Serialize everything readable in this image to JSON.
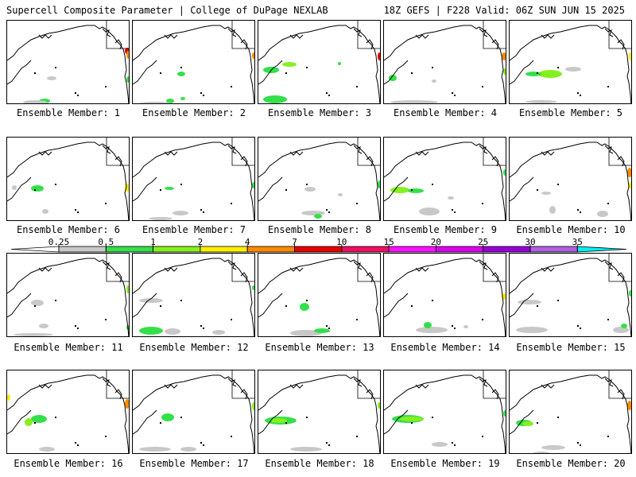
{
  "header": {
    "left": "Supercell Composite Parameter | College of DuPage NEXLAB",
    "right": "18Z GEFS | F228 Valid: 06Z SUN JUN 15 2025"
  },
  "colorbar": {
    "labels": [
      "0.25",
      "0.5",
      "1",
      "2",
      "4",
      "7",
      "10",
      "15",
      "20",
      "25",
      "30",
      "35"
    ],
    "colors": [
      "#ffffff",
      "#c8c8c8",
      "#33e04a",
      "#86f01e",
      "#ffee00",
      "#ff8a00",
      "#e60000",
      "#ee1060",
      "#ff10ff",
      "#dc00f0",
      "#9600d8",
      "#b060e0",
      "#00f0f0"
    ]
  },
  "panels": [
    {
      "label": "Ensemble Member: 1"
    },
    {
      "label": "Ensemble Member: 2"
    },
    {
      "label": "Ensemble Member: 3"
    },
    {
      "label": "Ensemble Member: 4"
    },
    {
      "label": "Ensemble Member: 5"
    },
    {
      "label": "Ensemble Member: 6"
    },
    {
      "label": "Ensemble Member: 7"
    },
    {
      "label": "Ensemble Member: 8"
    },
    {
      "label": "Ensemble Member: 9"
    },
    {
      "label": "Ensemble Member: 10"
    },
    {
      "label": "Ensemble Member: 11"
    },
    {
      "label": "Ensemble Member: 12"
    },
    {
      "label": "Ensemble Member: 13"
    },
    {
      "label": "Ensemble Member: 14"
    },
    {
      "label": "Ensemble Member: 15"
    },
    {
      "label": "Ensemble Member: 16"
    },
    {
      "label": "Ensemble Member: 17"
    },
    {
      "label": "Ensemble Member: 18"
    },
    {
      "label": "Ensemble Member: 19"
    },
    {
      "label": "Ensemble Member: 20"
    }
  ]
}
